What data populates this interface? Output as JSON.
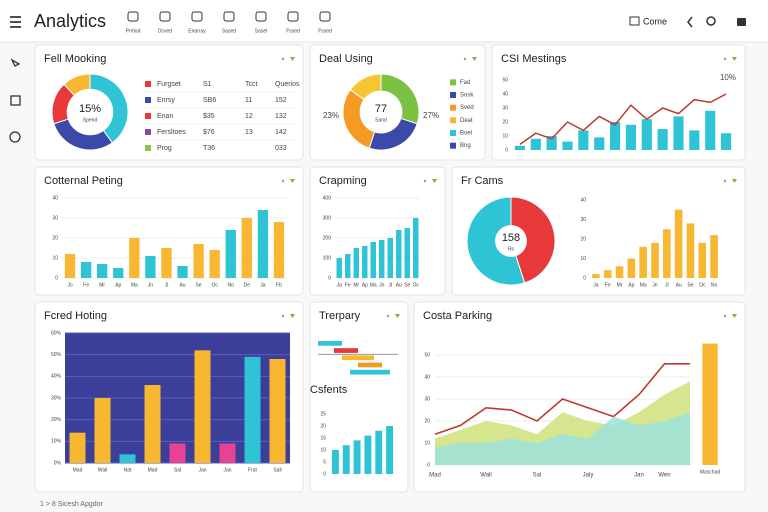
{
  "header": {
    "title": "Analytics",
    "tools": [
      "Prrtiod",
      "Dcved",
      "Enarray",
      "Sased",
      "Sasel",
      "Fssed",
      "Fssed"
    ],
    "action": "Come"
  },
  "panels": [
    {
      "title": "Fell Mooking",
      "charts": [
        {
          "type": "donut",
          "center": "15%",
          "center_sub": "Spend",
          "values": [
            40,
            30,
            18,
            12
          ],
          "colors": [
            "#2ec4d6",
            "#3b4aa8",
            "#e8393a",
            "#f7b731"
          ]
        },
        {
          "type": "table",
          "colors": [
            "#e8393a",
            "#3b4aa8",
            "#e8393a",
            "#8e44ad",
            "#8bc34a"
          ],
          "rows": [
            [
              "Furgset",
              "S1",
              "Tcct",
              "Querios"
            ],
            [
              "Enrsy",
              "SB6",
              "11",
              "152"
            ],
            [
              "Enan",
              "$35",
              "12",
              "132"
            ],
            [
              "Fersltoes",
              "$76",
              "13",
              "142"
            ],
            [
              "Prog",
              "T36",
              "",
              "033"
            ]
          ]
        }
      ]
    },
    {
      "title": "Deal Using",
      "charts": [
        {
          "type": "donut",
          "center": "77",
          "center_sub": "Sand",
          "left": "23%",
          "right": "27%",
          "values": [
            30,
            25,
            30,
            15
          ],
          "colors": [
            "#7cc242",
            "#3b4aa8",
            "#f59b23",
            "#f7c531"
          ]
        },
        {
          "type": "legend",
          "labels": [
            "Fad",
            "Sosk",
            "Sved",
            "Deat",
            "Boel",
            "Bng"
          ],
          "colors": [
            "#7cc242",
            "#3b4aa8",
            "#f59b23",
            "#f7b731",
            "#2ec4d6",
            "#3b4aa8"
          ]
        }
      ]
    },
    {
      "title": "CSI Mestings",
      "charts": [
        {
          "type": "bar",
          "annotation": "10%",
          "values": [
            3,
            8,
            10,
            6,
            14,
            9,
            20,
            18,
            22,
            15,
            24,
            14,
            28,
            12
          ],
          "color": "#2ec4d6",
          "ylim": [
            0,
            50
          ],
          "yticks": [
            0,
            10,
            20,
            30,
            40,
            50
          ],
          "line": {
            "color": "#c0392b",
            "values": [
              4,
              12,
              8,
              20,
              14,
              24,
              18,
              32,
              22,
              30,
              26,
              36,
              34,
              40
            ]
          }
        }
      ]
    },
    {
      "title": "Cotternal Peting",
      "charts": [
        {
          "type": "bar",
          "values": [
            12,
            8,
            7,
            5,
            20,
            11,
            15,
            6,
            17,
            14,
            24,
            30,
            34,
            28
          ],
          "colors": [
            "#f7b731",
            "#2ec4d6",
            "#2ec4d6",
            "#2ec4d6",
            "#f7b731",
            "#2ec4d6",
            "#f7b731",
            "#2ec4d6",
            "#f7b731",
            "#f7b731",
            "#2ec4d6",
            "#f7b731",
            "#2ec4d6",
            "#f7b731"
          ],
          "categories": [
            "Jo",
            "Fe",
            "Mr",
            "Ap",
            "Ma",
            "Jn",
            "Jl",
            "Au",
            "Se",
            "Oc",
            "No",
            "De",
            "Ja",
            "Fb"
          ],
          "ylim": [
            0,
            40
          ],
          "yticks": [
            0,
            10,
            20,
            30,
            40
          ],
          "grid": true
        }
      ]
    },
    {
      "title": "Crapming",
      "charts": [
        {
          "type": "bar",
          "values": [
            100,
            120,
            150,
            160,
            180,
            190,
            200,
            240,
            250,
            300
          ],
          "color": "#2ec4d6",
          "categories": [
            "Ja",
            "Fe",
            "Mr",
            "Ap",
            "Ma",
            "Jn",
            "Jl",
            "Au",
            "Se",
            "Oc"
          ],
          "ylim": [
            0,
            400
          ],
          "yticks": [
            0,
            100,
            200,
            300,
            400
          ],
          "grid": true
        }
      ]
    },
    {
      "title": "Fr Cams",
      "charts": [
        {
          "type": "donut",
          "center": "158",
          "center_sub": "Rs",
          "values": [
            45,
            55
          ],
          "colors": [
            "#e8393a",
            "#2ec4d6"
          ]
        },
        {
          "type": "bar",
          "values": [
            2,
            4,
            6,
            10,
            16,
            18,
            25,
            35,
            28,
            18,
            22
          ],
          "color": "#f7b731",
          "categories": [
            "Ja",
            "Fe",
            "Mr",
            "Ap",
            "Ma",
            "Jn",
            "Jl",
            "Au",
            "Se",
            "Oc",
            "No"
          ],
          "ylim": [
            0,
            40
          ],
          "yticks": [
            0,
            10,
            20,
            30,
            40
          ]
        }
      ]
    },
    {
      "title": "Fcred Hoting",
      "charts": [
        {
          "type": "bar",
          "background": "#3b3f9a",
          "grid": true,
          "grid_color": "#5a5fb8",
          "values": [
            14,
            30,
            4,
            36,
            9,
            52,
            9,
            49,
            48
          ],
          "colors": [
            "#f7b731",
            "#f7b731",
            "#2ec4d6",
            "#f7b731",
            "#e84393",
            "#f7b731",
            "#e84393",
            "#2ec4d6",
            "#f7b731"
          ],
          "categories": [
            "Mad",
            "Wall",
            "Nat",
            "Mad",
            "Sal",
            "Jan",
            "Jan",
            "Frat",
            "Sall"
          ],
          "ylim": [
            0,
            60
          ],
          "yticks": [
            {
              "value": 0,
              "label": "0%"
            },
            {
              "value": 10,
              "label": "10%"
            },
            {
              "value": 20,
              "label": "20%"
            },
            {
              "value": 30,
              "label": "30%"
            },
            {
              "value": 40,
              "label": "40%"
            },
            {
              "value": 50,
              "label": "50%"
            },
            {
              "value": 60,
              "label": "60%"
            }
          ]
        }
      ]
    },
    {
      "title": "Trerpary",
      "charts": [
        {
          "type": "gantt",
          "xlim": [
            0,
            10
          ],
          "tasks": [
            {
              "start": 0,
              "end": 3,
              "color": "#2ec4d6"
            },
            {
              "start": 2,
              "end": 5,
              "color": "#e8393a"
            },
            {
              "start": 3,
              "end": 7,
              "color": "#f7b731"
            },
            {
              "start": 5,
              "end": 8,
              "color": "#f59b23"
            },
            {
              "start": 4,
              "end": 9,
              "color": "#2ec4d6"
            }
          ]
        },
        {
          "type": "bar",
          "title": "Csfents",
          "values": [
            10,
            12,
            14,
            16,
            18,
            20
          ],
          "color": "#2ec4d6",
          "ylim": [
            0,
            25
          ],
          "yticks": [
            0,
            5,
            10,
            15,
            20,
            25
          ]
        }
      ]
    },
    {
      "title": "Costa Parking",
      "charts": [
        {
          "type": "area",
          "categories": [
            "Mad",
            null,
            "Wall",
            null,
            "Sal",
            null,
            "Jaly",
            null,
            "Jan",
            "Wen",
            null
          ],
          "ylim": [
            0,
            50
          ],
          "yticks": [
            0,
            10,
            20,
            30,
            40,
            50
          ],
          "grid": true,
          "series": [
            {
              "color": "#9ee0dc",
              "fill": true,
              "values": [
                8,
                10,
                10,
                12,
                10,
                14,
                12,
                22,
                18,
                20,
                24
              ]
            },
            {
              "color": "#cfe27a",
              "fill": true,
              "values": [
                12,
                16,
                20,
                18,
                14,
                24,
                20,
                18,
                24,
                32,
                38
              ]
            },
            {
              "color": "#c0392b",
              "fill": false,
              "values": [
                14,
                18,
                26,
                25,
                20,
                30,
                26,
                22,
                32,
                46,
                46
              ]
            }
          ]
        },
        {
          "type": "bar",
          "values": [
            46
          ],
          "color": "#f7b731",
          "categories": [
            "Maschad"
          ],
          "ylim": [
            0,
            50
          ]
        }
      ]
    }
  ],
  "footer": "1 > 8 Sicesh Apgdor"
}
